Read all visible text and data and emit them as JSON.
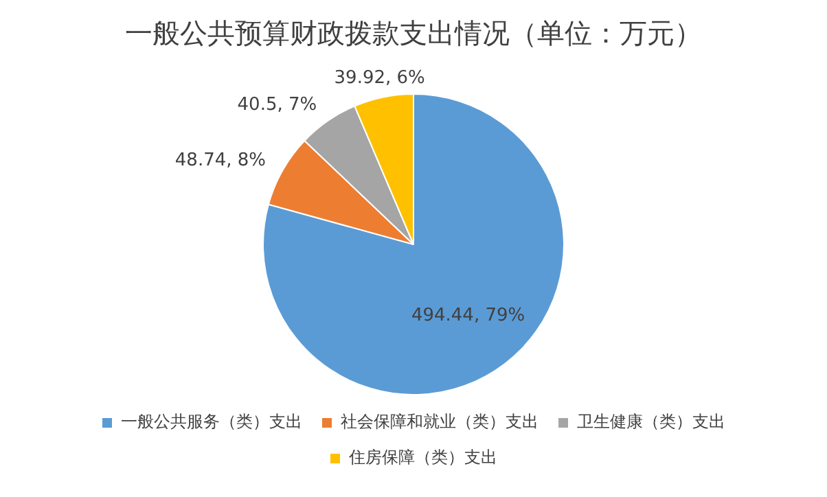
{
  "chart_data": {
    "type": "pie",
    "title": "一般公共预算财政拨款支出情况（单位：万元）",
    "categories": [
      "一般公共服务（类）支出",
      "社会保障和就业（类）支出",
      "卫生健康（类）支出",
      "住房保障（类）支出"
    ],
    "values": [
      494.44,
      48.74,
      40.5,
      39.92
    ],
    "colors": [
      "#5b9bd5",
      "#ed7d31",
      "#a5a5a5",
      "#ffc000"
    ],
    "value_labels": [
      "494.44, 79%",
      "48.74, 8%",
      "40.5, 7%",
      "39.92, 6%"
    ],
    "legend": "bottom"
  }
}
